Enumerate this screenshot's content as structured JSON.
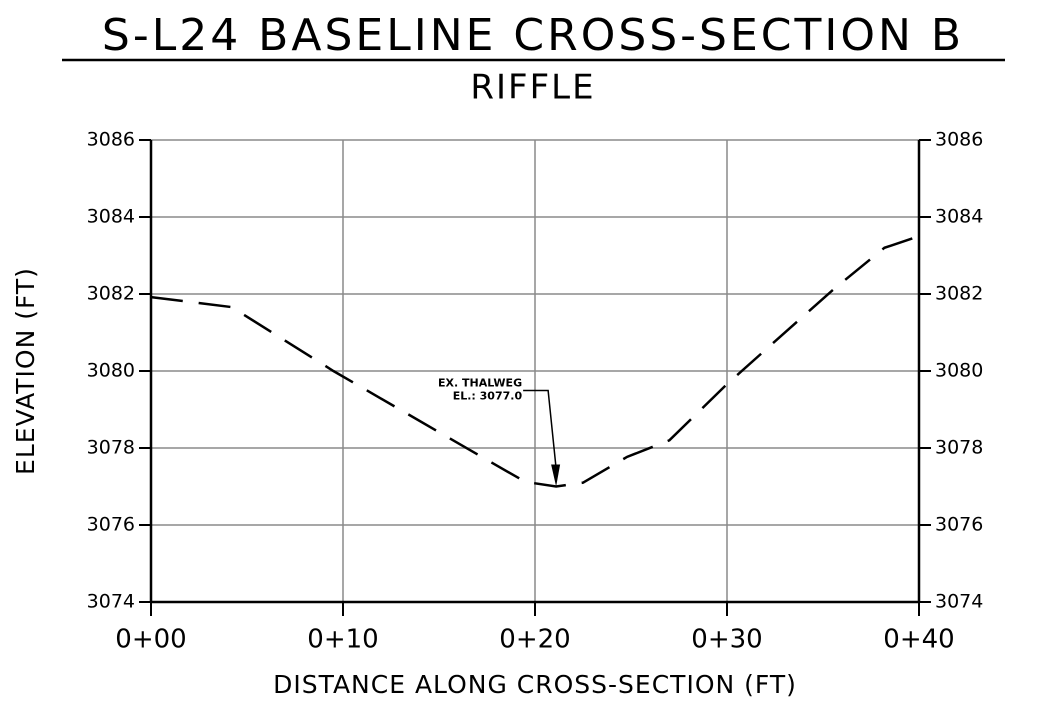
{
  "chart_data": {
    "type": "line",
    "title": "S-L24 BASELINE CROSS-SECTION B",
    "subtitle": "RIFFLE",
    "xlabel": "DISTANCE ALONG CROSS-SECTION (FT)",
    "ylabel": "ELEVATION (FT)",
    "x": [
      0,
      4.2,
      9.5,
      17.5,
      19.5,
      21.1,
      22.5,
      24.8,
      27,
      30,
      35.5,
      38.2,
      40
    ],
    "series": [
      {
        "color": "#000000",
        "values": [
          3081.92,
          3081.66,
          3080.0,
          3077.69,
          3077.12,
          3077.0,
          3077.1,
          3077.77,
          3078.2,
          3079.66,
          3082.1,
          3083.2,
          3083.5
        ]
      }
    ],
    "xlim": [
      0,
      40
    ],
    "xticks": [
      {
        "value": 0,
        "label": "0+00"
      },
      {
        "value": 10,
        "label": "0+10"
      },
      {
        "value": 20,
        "label": "0+20"
      },
      {
        "value": 30,
        "label": "0+30"
      },
      {
        "value": 40,
        "label": "0+40"
      }
    ],
    "ylim": [
      3074,
      3086
    ],
    "yticks": [
      3074,
      3076,
      3078,
      3080,
      3082,
      3084,
      3086
    ],
    "grid": true,
    "annotation": {
      "text": [
        "EX. THALWEG",
        "EL.: 3077.0"
      ],
      "x": 21.1,
      "y": 3077.0
    }
  }
}
